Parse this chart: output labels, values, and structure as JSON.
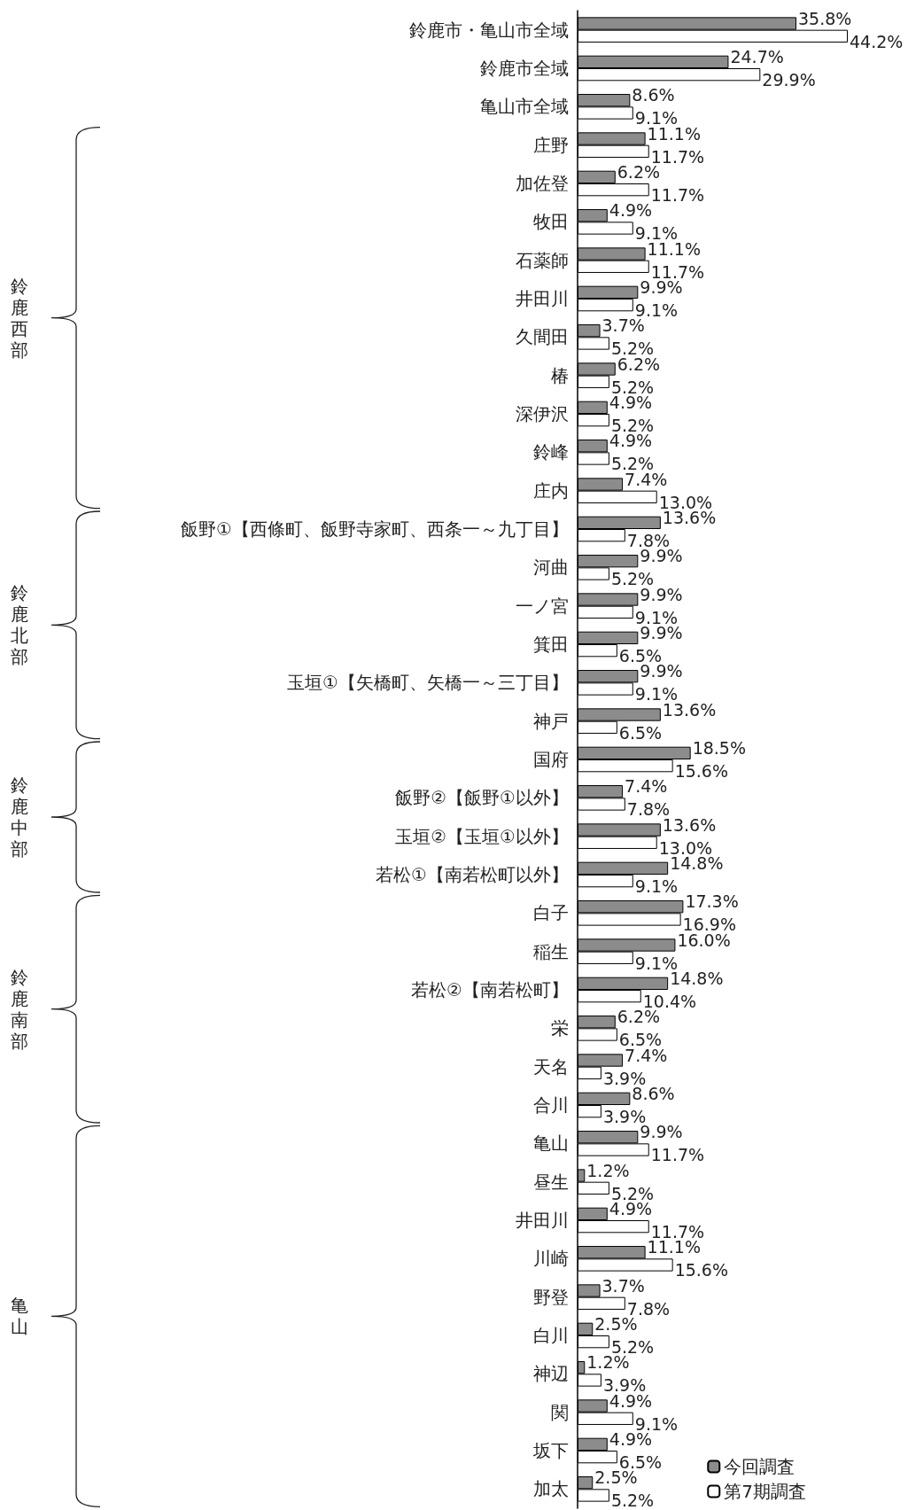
{
  "chart_data": {
    "type": "bar",
    "orientation": "horizontal",
    "legend": "bottom right",
    "categories": [
      "鈴鹿市・亀山市全域",
      "鈴鹿市全域",
      "亀山市全域",
      "庄野",
      "加佐登",
      "牧田",
      "石薬師",
      "井田川",
      "久間田",
      "椿",
      "深伊沢",
      "鈴峰",
      "庄内",
      "飯野①【西條町、飯野寺家町、西条一～九丁目】",
      "河曲",
      "一ノ宮",
      "箕田",
      "玉垣①【矢橋町、矢橋一～三丁目】",
      "神戸",
      "国府",
      "飯野②【飯野①以外】",
      "玉垣②【玉垣①以外】",
      "若松①【南若松町以外】",
      "白子",
      "稲生",
      "若松②【南若松町】",
      "栄",
      "天名",
      "合川",
      "亀山",
      "昼生",
      "井田川",
      "川崎",
      "野登",
      "白川",
      "神辺",
      "関",
      "坂下",
      "加太"
    ],
    "series": [
      {
        "name": "今回調査",
        "color": "#8c8c8c",
        "values": [
          35.8,
          24.7,
          8.6,
          11.1,
          6.2,
          4.9,
          11.1,
          9.9,
          3.7,
          6.2,
          4.9,
          4.9,
          7.4,
          13.6,
          9.9,
          9.9,
          9.9,
          9.9,
          13.6,
          18.5,
          7.4,
          13.6,
          14.8,
          17.3,
          16.0,
          14.8,
          6.2,
          7.4,
          8.6,
          9.9,
          1.2,
          4.9,
          11.1,
          3.7,
          2.5,
          1.2,
          4.9,
          4.9,
          2.5
        ],
        "value_labels": [
          "35.8%",
          "24.7%",
          "8.6%",
          "11.1%",
          "6.2%",
          "4.9%",
          "11.1%",
          "9.9%",
          "3.7%",
          "6.2%",
          "4.9%",
          "4.9%",
          "7.4%",
          "13.6%",
          "9.9%",
          "9.9%",
          "9.9%",
          "9.9%",
          "13.6%",
          "18.5%",
          "7.4%",
          "13.6%",
          "14.8%",
          "17.3%",
          "16.0%",
          "14.8%",
          "6.2%",
          "7.4%",
          "8.6%",
          "9.9%",
          "1.2%",
          "4.9%",
          "11.1%",
          "3.7%",
          "2.5%",
          "1.2%",
          "4.9%",
          "4.9%",
          "2.5%"
        ]
      },
      {
        "name": "第7期調査",
        "color": "#ffffff",
        "values": [
          44.2,
          29.9,
          9.1,
          11.7,
          11.7,
          9.1,
          11.7,
          9.1,
          5.2,
          5.2,
          5.2,
          5.2,
          13.0,
          7.8,
          5.2,
          9.1,
          6.5,
          9.1,
          6.5,
          15.6,
          7.8,
          13.0,
          9.1,
          16.9,
          9.1,
          10.4,
          6.5,
          3.9,
          3.9,
          11.7,
          5.2,
          11.7,
          15.6,
          7.8,
          5.2,
          3.9,
          9.1,
          6.5,
          5.2
        ],
        "value_labels": [
          "44.2%",
          "29.9%",
          "9.1%",
          "11.7%",
          "11.7%",
          "9.1%",
          "11.7%",
          "9.1%",
          "5.2%",
          "5.2%",
          "5.2%",
          "5.2%",
          "13.0%",
          "7.8%",
          "5.2%",
          "9.1%",
          "6.5%",
          "9.1%",
          "6.5%",
          "15.6%",
          "7.8%",
          "13.0%",
          "9.1%",
          "16.9%",
          "9.1%",
          "10.4%",
          "6.5%",
          "3.9%",
          "3.9%",
          "11.7%",
          "5.2%",
          "11.7%",
          "15.6%",
          "7.8%",
          "5.2%",
          "3.9%",
          "9.1%",
          "6.5%",
          "5.2%"
        ]
      }
    ],
    "annotations": [
      "鈴鹿西部",
      "鈴鹿北部",
      "鈴鹿中部",
      "鈴鹿南部",
      "亀山"
    ]
  }
}
